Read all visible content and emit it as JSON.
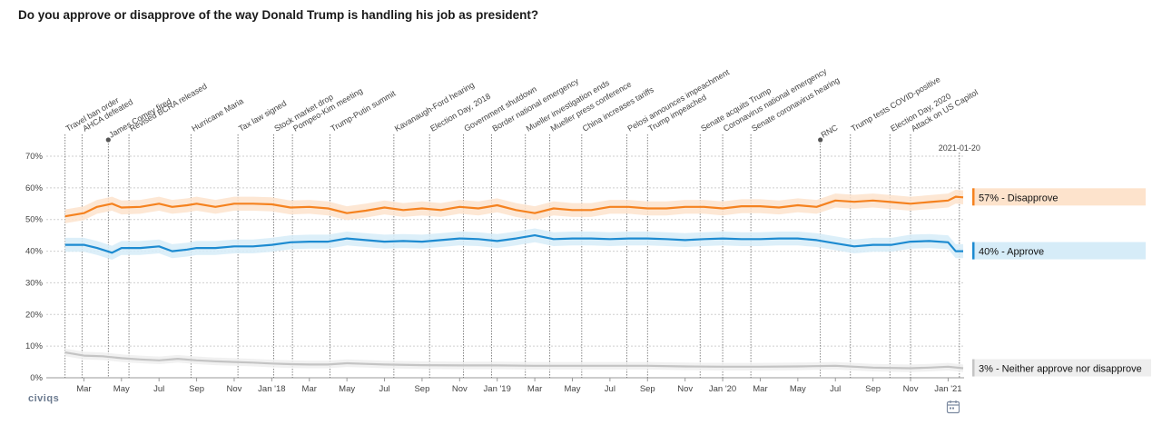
{
  "page_title": "Do you approve or disapprove of the way Donald Trump is handling his job as president?",
  "brand": "civiqs",
  "icons": {
    "calendar": "calendar-icon"
  },
  "chart_data": {
    "type": "line",
    "title": "Do you approve or disapprove of the way Donald Trump is handling his job as president?",
    "xlabel": "",
    "ylabel": "",
    "x_range": [
      "2017-02-01",
      "2021-01-25"
    ],
    "ylim": [
      0,
      70
    ],
    "y_ticks": [
      "0%",
      "10%",
      "20%",
      "30%",
      "40%",
      "50%",
      "60%",
      "70%"
    ],
    "x_ticks": [
      "Mar",
      "May",
      "Jul",
      "Sep",
      "Nov",
      "Jan '18",
      "Mar",
      "May",
      "Jul",
      "Sep",
      "Nov",
      "Jan '19",
      "Mar",
      "May",
      "Jul",
      "Sep",
      "Nov",
      "Jan '20",
      "Mar",
      "May",
      "Jul",
      "Sep",
      "Nov",
      "Jan '21"
    ],
    "x_tick_months": [
      2,
      4,
      6,
      8,
      10,
      12,
      14,
      16,
      18,
      20,
      22,
      24,
      26,
      28,
      30,
      32,
      34,
      36,
      38,
      40,
      42,
      44,
      46,
      48
    ],
    "series": [
      {
        "name": "Disapprove",
        "color": "#f5821f",
        "band_color": "#fde3cc",
        "end_label": "57% - Disapprove",
        "end_value": 57,
        "x_months": [
          1,
          2,
          2.7,
          3.5,
          4,
          5,
          6,
          6.7,
          7.5,
          8,
          9,
          10,
          11,
          12,
          13,
          14,
          15,
          16,
          17,
          18,
          19,
          20,
          21,
          22,
          23,
          24,
          25,
          26,
          27,
          28,
          29,
          30,
          31,
          32,
          33,
          34,
          35,
          36,
          37,
          38,
          39,
          40,
          41,
          42,
          43,
          44,
          45,
          46,
          47,
          48,
          48.4,
          48.8
        ],
        "values": [
          51,
          52,
          54,
          55,
          53.8,
          54,
          55,
          54,
          54.5,
          55,
          54,
          55,
          55,
          54.8,
          53.8,
          54,
          53.5,
          52,
          52.8,
          53.8,
          53,
          53.5,
          53,
          54,
          53.5,
          54.5,
          53,
          52,
          53.5,
          53,
          53,
          54,
          54,
          53.5,
          53.5,
          54,
          54,
          53.5,
          54.2,
          54.2,
          53.8,
          54.5,
          54,
          56,
          55.6,
          56,
          55.5,
          55,
          55.5,
          56,
          57.2,
          57
        ]
      },
      {
        "name": "Approve",
        "color": "#1d8bd1",
        "band_color": "#d6ecf8",
        "end_label": "40% - Approve",
        "end_value": 40,
        "x_months": [
          1,
          2,
          2.7,
          3.5,
          4,
          5,
          6,
          6.7,
          7.5,
          8,
          9,
          10,
          11,
          12,
          13,
          14,
          15,
          16,
          17,
          18,
          19,
          20,
          21,
          22,
          23,
          24,
          25,
          26,
          27,
          28,
          29,
          30,
          31,
          32,
          33,
          34,
          35,
          36,
          37,
          38,
          39,
          40,
          41,
          42,
          43,
          44,
          45,
          46,
          47,
          48,
          48.4,
          48.8
        ],
        "values": [
          42,
          42,
          41,
          39.5,
          41,
          41,
          41.5,
          40,
          40.5,
          41,
          41,
          41.5,
          41.5,
          42,
          42.8,
          43,
          43,
          44,
          43.5,
          43,
          43.2,
          43,
          43.5,
          44,
          43.8,
          43.2,
          44,
          45,
          43.8,
          44,
          44,
          43.8,
          44,
          44,
          43.8,
          43.5,
          43.8,
          44,
          43.8,
          43.8,
          44,
          44,
          43.5,
          42.5,
          41.5,
          42,
          42,
          43,
          43.2,
          42.8,
          40,
          40
        ]
      },
      {
        "name": "Neither approve nor disapprove",
        "color": "#c4c4c4",
        "band_color": "#eeeeee",
        "end_label": "3% - Neither approve nor disapprove",
        "end_value": 3,
        "x_months": [
          1,
          2,
          3,
          4,
          5,
          6,
          7,
          8,
          9,
          10,
          11,
          12,
          13,
          14,
          15,
          16,
          17,
          18,
          20,
          22,
          24,
          26,
          28,
          30,
          32,
          34,
          36,
          38,
          40,
          42,
          44,
          46,
          47,
          48,
          48.8
        ],
        "values": [
          8,
          7,
          6.8,
          6.2,
          5.8,
          5.5,
          6,
          5.5,
          5.2,
          5,
          4.8,
          4.5,
          4.3,
          4.2,
          4.2,
          4.6,
          4.4,
          4.2,
          4,
          3.9,
          3.9,
          3.8,
          3.8,
          3.8,
          3.8,
          3.6,
          3.5,
          3.5,
          3.6,
          3.8,
          3.2,
          3,
          3.2,
          3.5,
          3
        ]
      }
    ],
    "events": [
      {
        "label": "Travel ban order",
        "month": 1.0,
        "dot": false
      },
      {
        "label": "AHCA defeated",
        "month": 1.9,
        "dot": false
      },
      {
        "label": "James Comey fired",
        "month": 3.3,
        "dot": true
      },
      {
        "label": "Revised BCRA released",
        "month": 4.4,
        "dot": false
      },
      {
        "label": "Hurricane Maria",
        "month": 7.7,
        "dot": false
      },
      {
        "label": "Tax law signed",
        "month": 10.2,
        "dot": false
      },
      {
        "label": "Stock market drop",
        "month": 12.1,
        "dot": false
      },
      {
        "label": "Pompeo-Kim meeting",
        "month": 13.1,
        "dot": false
      },
      {
        "label": "Trump-Putin summit",
        "month": 15.1,
        "dot": false
      },
      {
        "label": "Kavanaugh-Ford hearing",
        "month": 18.5,
        "dot": false
      },
      {
        "label": "Election Day, 2018",
        "month": 20.4,
        "dot": false
      },
      {
        "label": "Government shutdown",
        "month": 22.2,
        "dot": false
      },
      {
        "label": "Border national emergency",
        "month": 23.7,
        "dot": false
      },
      {
        "label": "Mueller investigation ends",
        "month": 25.5,
        "dot": false
      },
      {
        "label": "Mueller press conference",
        "month": 26.8,
        "dot": false
      },
      {
        "label": "China increases tariffs",
        "month": 28.5,
        "dot": false
      },
      {
        "label": "Pelosi announces impeachment",
        "month": 30.9,
        "dot": false
      },
      {
        "label": "Trump impeached",
        "month": 32.0,
        "dot": false
      },
      {
        "label": "Senate acquits Trump",
        "month": 34.8,
        "dot": false
      },
      {
        "label": "Coronavirus national emergency",
        "month": 36.0,
        "dot": false
      },
      {
        "label": "Senate coronavirus hearing",
        "month": 37.5,
        "dot": false
      },
      {
        "label": "RNC",
        "month": 41.2,
        "dot": true
      },
      {
        "label": "Trump tests COVID-positive",
        "month": 42.8,
        "dot": false
      },
      {
        "label": "Election Day, 2020",
        "month": 44.9,
        "dot": false
      },
      {
        "label": "Attack on US Capitol",
        "month": 46.0,
        "dot": false
      }
    ],
    "date_marker": {
      "label": "2021-01-20",
      "month": 48.6
    }
  }
}
